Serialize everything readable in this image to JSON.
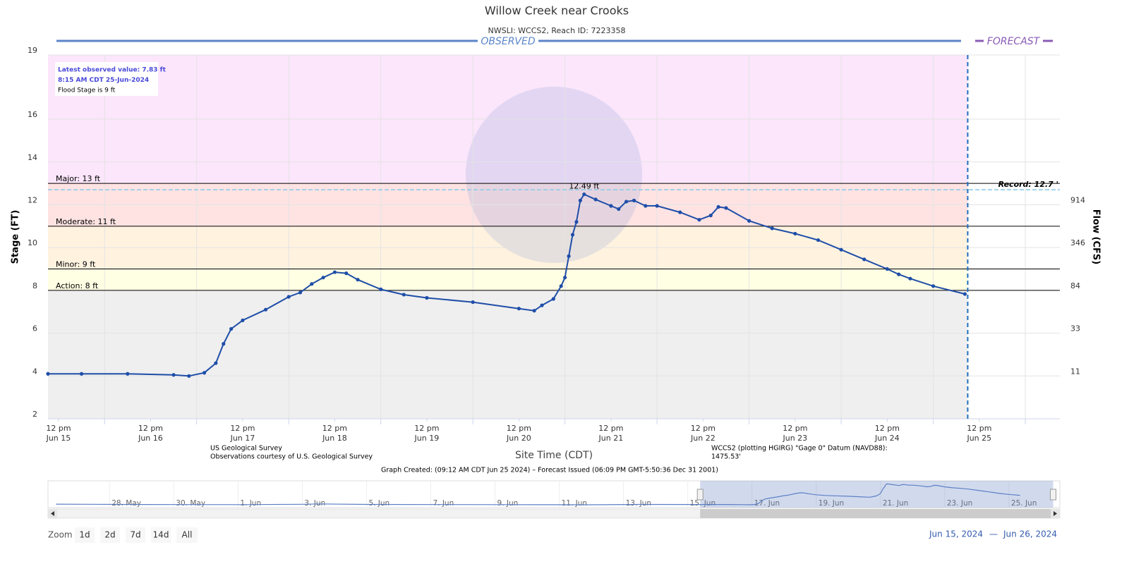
{
  "chart_data": {
    "type": "line",
    "title": "Willow Creek near Crooks",
    "subtitle": "NWSLI: WCCS2, Reach ID: 7223358",
    "observed_label": "OBSERVED",
    "forecast_label": "FORECAST",
    "ylabel": "Stage (FT)",
    "y2label": "Flow (CFS)",
    "xlabel": "Site Time (CDT)",
    "xlim": [
      "2024-06-15T09:15",
      "2024-06-26T09:00"
    ],
    "ylim": [
      2,
      19
    ],
    "yticks": [
      2,
      4,
      6,
      8,
      10,
      12,
      14,
      16,
      19
    ],
    "y2ticks": [
      {
        "flow": 914,
        "stage": 12
      },
      {
        "flow": 346,
        "stage": 10
      },
      {
        "flow": 84,
        "stage": 8
      },
      {
        "flow": 33,
        "stage": 6
      },
      {
        "flow": 11,
        "stage": 4
      }
    ],
    "xticks": [
      {
        "value": "2024-06-15T12:00",
        "label": "12 pm",
        "date": "Jun 15"
      },
      {
        "value": "2024-06-16T12:00",
        "label": "12 pm",
        "date": "Jun 16"
      },
      {
        "value": "2024-06-17T12:00",
        "label": "12 pm",
        "date": "Jun 17"
      },
      {
        "value": "2024-06-18T12:00",
        "label": "12 pm",
        "date": "Jun 18"
      },
      {
        "value": "2024-06-19T12:00",
        "label": "12 pm",
        "date": "Jun 19"
      },
      {
        "value": "2024-06-20T12:00",
        "label": "12 pm",
        "date": "Jun 20"
      },
      {
        "value": "2024-06-21T12:00",
        "label": "12 pm",
        "date": "Jun 21"
      },
      {
        "value": "2024-06-22T12:00",
        "label": "12 pm",
        "date": "Jun 22"
      },
      {
        "value": "2024-06-23T12:00",
        "label": "12 pm",
        "date": "Jun 23"
      },
      {
        "value": "2024-06-24T12:00",
        "label": "12 pm",
        "date": "Jun 24"
      },
      {
        "value": "2024-06-25T12:00",
        "label": "12 pm",
        "date": "Jun 25"
      }
    ],
    "xgrid": [
      "2024-06-16T00:00",
      "2024-06-17T00:00",
      "2024-06-18T00:00",
      "2024-06-19T00:00",
      "2024-06-20T00:00",
      "2024-06-21T00:00",
      "2024-06-22T00:00",
      "2024-06-23T00:00",
      "2024-06-24T00:00",
      "2024-06-25T00:00",
      "2024-06-26T00:00"
    ],
    "grid": true,
    "base_color": "#efefef",
    "thresholds": [
      {
        "label": "Action: 8 ft",
        "value": 8,
        "color": "#ffffe3"
      },
      {
        "label": "Minor: 9 ft",
        "value": 9,
        "color": "#fff3e0"
      },
      {
        "label": "Moderate: 11 ft",
        "value": 11,
        "color": "#ffe3e3"
      },
      {
        "label": "Major: 13 ft",
        "value": 13,
        "color": "#fbe6fb"
      }
    ],
    "record": {
      "label": "Record: 12.7 '",
      "value": 12.7
    },
    "peak_label": "12.49 ft",
    "info": [
      "Latest observed value: 7.83 ft",
      "8:15 AM CDT 25-Jun-2024",
      "Flood Stage is 9 ft"
    ],
    "series": [
      {
        "color": "#1f4ea8",
        "x": [
          "2024-06-15T09:15",
          "2024-06-15T18:00",
          "2024-06-16T06:00",
          "2024-06-16T18:00",
          "2024-06-16T22:00",
          "2024-06-17T02:00",
          "2024-06-17T05:00",
          "2024-06-17T07:00",
          "2024-06-17T09:00",
          "2024-06-17T12:00",
          "2024-06-17T18:00",
          "2024-06-18T00:00",
          "2024-06-18T03:00",
          "2024-06-18T06:00",
          "2024-06-18T09:00",
          "2024-06-18T12:00",
          "2024-06-18T15:00",
          "2024-06-18T18:00",
          "2024-06-19T00:00",
          "2024-06-19T06:00",
          "2024-06-19T12:00",
          "2024-06-20T00:00",
          "2024-06-20T12:00",
          "2024-06-20T16:00",
          "2024-06-20T18:00",
          "2024-06-20T21:00",
          "2024-06-20T23:00",
          "2024-06-21T00:00",
          "2024-06-21T01:00",
          "2024-06-21T02:00",
          "2024-06-21T03:00",
          "2024-06-21T04:00",
          "2024-06-21T05:00",
          "2024-06-21T08:00",
          "2024-06-21T12:00",
          "2024-06-21T14:00",
          "2024-06-21T16:00",
          "2024-06-21T18:00",
          "2024-06-21T21:00",
          "2024-06-22T00:00",
          "2024-06-22T06:00",
          "2024-06-22T11:00",
          "2024-06-22T14:00",
          "2024-06-22T16:00",
          "2024-06-22T18:00",
          "2024-06-23T00:00",
          "2024-06-23T06:00",
          "2024-06-23T12:00",
          "2024-06-23T18:00",
          "2024-06-24T00:00",
          "2024-06-24T06:00",
          "2024-06-24T12:00",
          "2024-06-24T15:00",
          "2024-06-24T18:00",
          "2024-06-25T00:00",
          "2024-06-25T08:15"
        ],
        "values": [
          4.1,
          4.1,
          4.1,
          4.05,
          4.0,
          4.15,
          4.6,
          5.5,
          6.2,
          6.6,
          7.1,
          7.7,
          7.9,
          8.3,
          8.6,
          8.85,
          8.8,
          8.5,
          8.05,
          7.8,
          7.65,
          7.45,
          7.15,
          7.05,
          7.3,
          7.6,
          8.2,
          8.6,
          9.6,
          10.6,
          11.2,
          12.2,
          12.49,
          12.25,
          11.95,
          11.8,
          12.15,
          12.2,
          11.95,
          11.95,
          11.65,
          11.3,
          11.5,
          11.9,
          11.85,
          11.25,
          10.9,
          10.65,
          10.35,
          9.9,
          9.45,
          9.0,
          8.75,
          8.55,
          8.2,
          7.83
        ]
      }
    ],
    "source": [
      "US Geological Survey",
      "Observations courtesy of U.S. Geological Survey"
    ],
    "datum": [
      "WCCS2 (plotting HGIRG) \"Gage 0\" Datum (NAVD88):",
      "1475.53'"
    ],
    "created": "Graph Created: (09:12 AM CDT Jun 25 2024) – Forecast Issued (06:09 PM GMT-5:50:36 Dec 31 2001)",
    "navigator": {
      "xlim": [
        "2024-05-26T02:00",
        "2024-06-26T14:00"
      ],
      "xticks": [
        {
          "value": "2024-05-28T00:00",
          "label": "28. May"
        },
        {
          "value": "2024-05-30T00:00",
          "label": "30. May"
        },
        {
          "value": "2024-06-01T00:00",
          "label": "1. Jun"
        },
        {
          "value": "2024-06-03T00:00",
          "label": "3. Jun"
        },
        {
          "value": "2024-06-05T00:00",
          "label": "5. Jun"
        },
        {
          "value": "2024-06-07T00:00",
          "label": "7. Jun"
        },
        {
          "value": "2024-06-09T00:00",
          "label": "9. Jun"
        },
        {
          "value": "2024-06-11T00:00",
          "label": "11. Jun"
        },
        {
          "value": "2024-06-13T00:00",
          "label": "13. Jun"
        },
        {
          "value": "2024-06-15T00:00",
          "label": "15. Jun"
        },
        {
          "value": "2024-06-17T00:00",
          "label": "17. Jun"
        },
        {
          "value": "2024-06-19T00:00",
          "label": "19. Jun"
        },
        {
          "value": "2024-06-21T00:00",
          "label": "21. Jun"
        },
        {
          "value": "2024-06-23T00:00",
          "label": "23. Jun"
        },
        {
          "value": "2024-06-25T00:00",
          "label": "25. Jun"
        }
      ],
      "x": [
        "2024-05-26T08:00",
        "2024-05-29T00:00",
        "2024-06-01T00:00",
        "2024-06-03T00:00",
        "2024-06-03T12:00",
        "2024-06-05T00:00",
        "2024-06-09T00:00",
        "2024-06-12T00:00",
        "2024-06-13T12:00",
        "2024-06-15T09:00"
      ],
      "values": [
        4.25,
        4.1,
        4.05,
        4.2,
        4.35,
        4.15,
        4.05,
        4.0,
        4.15,
        4.1
      ]
    },
    "zoom": {
      "label": "Zoom",
      "buttons": [
        "1d",
        "2d",
        "7d",
        "14d",
        "All"
      ]
    },
    "range": [
      "Jun 15, 2024",
      "—",
      "Jun 26, 2024"
    ]
  }
}
